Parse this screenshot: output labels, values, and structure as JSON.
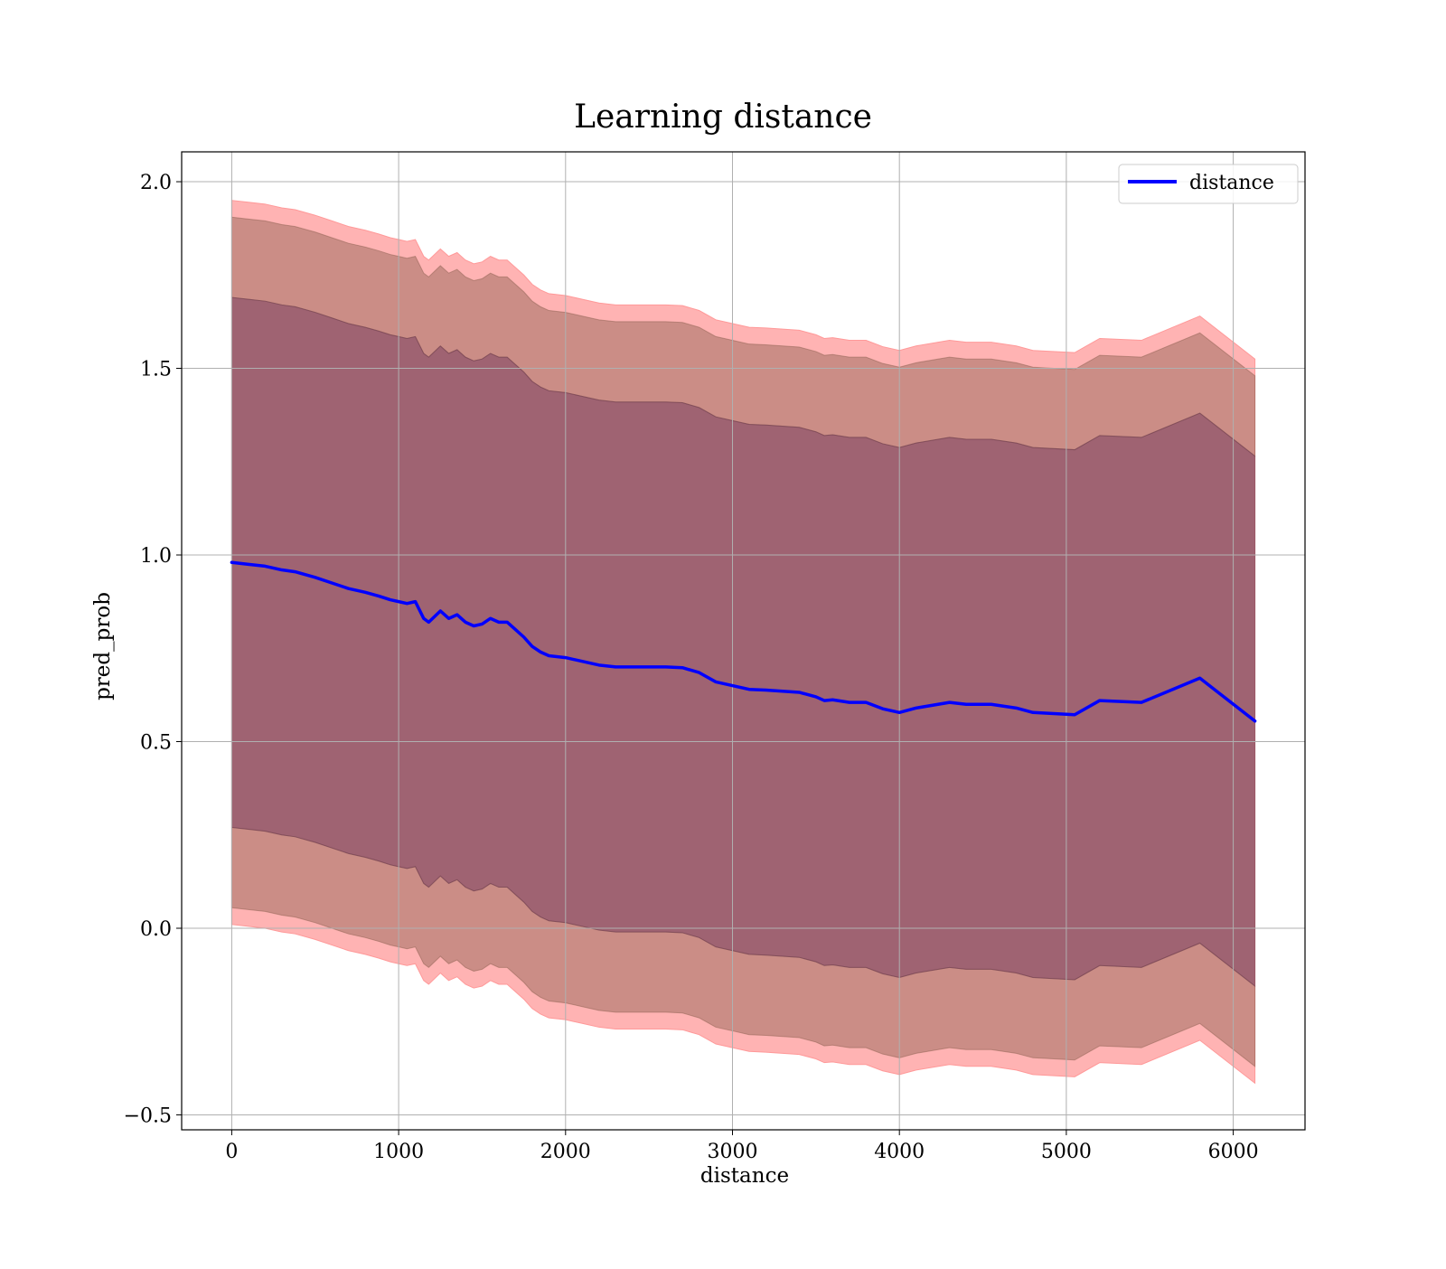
{
  "chart_data": {
    "type": "line",
    "title": "Learning distance",
    "xlabel": "distance",
    "ylabel": "pred_prob",
    "xlim": [
      -300,
      6430
    ],
    "ylim": [
      -0.54,
      2.08
    ],
    "xticks": [
      0,
      1000,
      2000,
      3000,
      4000,
      5000,
      6000
    ],
    "xtick_labels": [
      "0",
      "1000",
      "2000",
      "3000",
      "4000",
      "5000",
      "6000"
    ],
    "yticks": [
      -0.5,
      0.0,
      0.5,
      1.0,
      1.5,
      2.0
    ],
    "ytick_labels": [
      "−0.5",
      "0.0",
      "0.5",
      "1.0",
      "1.5",
      "2.0"
    ],
    "grid": true,
    "legend": {
      "position": "top-right",
      "entries": [
        "distance"
      ]
    },
    "colors": {
      "line": "#0000ff",
      "outer_band": "#ff9999",
      "inner_band": "#8b6050",
      "grid": "#b0b0b0"
    },
    "x": [
      0,
      100,
      200,
      300,
      380,
      500,
      600,
      700,
      800,
      880,
      950,
      1000,
      1050,
      1100,
      1150,
      1180,
      1250,
      1300,
      1350,
      1400,
      1450,
      1500,
      1550,
      1600,
      1650,
      1700,
      1750,
      1800,
      1850,
      1900,
      2000,
      2100,
      2200,
      2300,
      2400,
      2500,
      2600,
      2700,
      2800,
      2900,
      3000,
      3100,
      3200,
      3300,
      3400,
      3500,
      3550,
      3600,
      3700,
      3800,
      3900,
      4000,
      4100,
      4300,
      4400,
      4550,
      4700,
      4800,
      5050,
      5200,
      5450,
      5800,
      6130
    ],
    "series": [
      {
        "name": "distance",
        "values": [
          0.98,
          0.975,
          0.97,
          0.96,
          0.955,
          0.94,
          0.925,
          0.91,
          0.9,
          0.89,
          0.88,
          0.875,
          0.87,
          0.875,
          0.83,
          0.82,
          0.85,
          0.83,
          0.84,
          0.82,
          0.81,
          0.815,
          0.83,
          0.82,
          0.82,
          0.8,
          0.78,
          0.755,
          0.74,
          0.73,
          0.725,
          0.715,
          0.705,
          0.7,
          0.7,
          0.7,
          0.7,
          0.698,
          0.685,
          0.66,
          0.65,
          0.64,
          0.638,
          0.635,
          0.632,
          0.62,
          0.61,
          0.612,
          0.605,
          0.605,
          0.588,
          0.578,
          0.59,
          0.605,
          0.6,
          0.6,
          0.59,
          0.578,
          0.572,
          0.61,
          0.605,
          0.67,
          0.555
        ]
      }
    ],
    "bands": [
      {
        "role": "outer",
        "half_width": 0.97
      },
      {
        "role": "inner_upper",
        "from": 0.71,
        "to": 0.925
      },
      {
        "role": "inner_lower",
        "from": -0.925,
        "to": -0.71
      }
    ]
  }
}
